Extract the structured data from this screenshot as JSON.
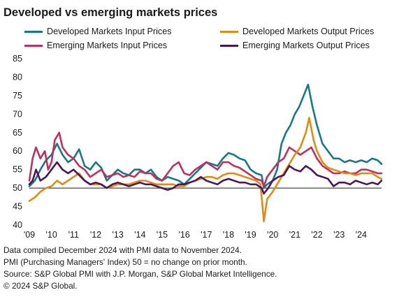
{
  "title": "Developed vs emerging markets prices",
  "colors": {
    "dm_input": "#157a86",
    "dm_output": "#e38a12",
    "em_input": "#c0305c",
    "em_output": "#4b1658",
    "baseline": "#1a1a1a"
  },
  "notes": [
    "Data compiled December 2024 with PMI data to November 2024.",
    "PMI (Purchasing Managers' Index) 50 = no change on prior month.",
    "Source: S&P Global PMI with J.P. Morgan, S&P Global Market Intelligence.",
    "© 2024 S&P Global."
  ],
  "chart_data": {
    "type": "line",
    "title": "Developed vs emerging markets prices",
    "xlabel": "",
    "ylabel": "",
    "xlim": [
      2009,
      2024.92
    ],
    "ylim": [
      40,
      85
    ],
    "yticks": [
      40,
      45,
      50,
      55,
      60,
      65,
      70,
      75,
      80,
      85
    ],
    "xticks": [
      {
        "label": "'09",
        "x": 2009
      },
      {
        "label": "'10",
        "x": 2010
      },
      {
        "label": "'11",
        "x": 2011
      },
      {
        "label": "'12",
        "x": 2012
      },
      {
        "label": "'13",
        "x": 2013
      },
      {
        "label": "'14",
        "x": 2014
      },
      {
        "label": "'15",
        "x": 2015
      },
      {
        "label": "'16",
        "x": 2016
      },
      {
        "label": "'17",
        "x": 2017
      },
      {
        "label": "'18",
        "x": 2018
      },
      {
        "label": "'19",
        "x": 2019
      },
      {
        "label": "'20",
        "x": 2020
      },
      {
        "label": "'21",
        "x": 2021
      },
      {
        "label": "'22",
        "x": 2022
      },
      {
        "label": "'23",
        "x": 2023
      },
      {
        "label": "'24",
        "x": 2024
      }
    ],
    "reference_line": 50,
    "grid": false,
    "legend_position": "top",
    "series": [
      {
        "name": "Developed Markets Input Prices",
        "color": "#157a86",
        "points": [
          [
            2009,
            50.5
          ],
          [
            2009.25,
            52
          ],
          [
            2009.5,
            55
          ],
          [
            2009.75,
            57.5
          ],
          [
            2010,
            59
          ],
          [
            2010.25,
            62
          ],
          [
            2010.5,
            59
          ],
          [
            2010.75,
            57
          ],
          [
            2011,
            58
          ],
          [
            2011.25,
            60.5
          ],
          [
            2011.5,
            56
          ],
          [
            2011.75,
            55
          ],
          [
            2012,
            57
          ],
          [
            2012.25,
            55.5
          ],
          [
            2012.5,
            52
          ],
          [
            2012.75,
            53.5
          ],
          [
            2013,
            55
          ],
          [
            2013.25,
            54
          ],
          [
            2013.5,
            53.5
          ],
          [
            2013.75,
            55
          ],
          [
            2014,
            55
          ],
          [
            2014.25,
            54
          ],
          [
            2014.5,
            55
          ],
          [
            2014.75,
            53
          ],
          [
            2015,
            52
          ],
          [
            2015.25,
            53
          ],
          [
            2015.5,
            52.5
          ],
          [
            2015.75,
            52
          ],
          [
            2016,
            51
          ],
          [
            2016.25,
            52.5
          ],
          [
            2016.5,
            54
          ],
          [
            2016.75,
            55.5
          ],
          [
            2017,
            57
          ],
          [
            2017.25,
            56.5
          ],
          [
            2017.5,
            56
          ],
          [
            2017.75,
            58
          ],
          [
            2018,
            59.5
          ],
          [
            2018.25,
            59
          ],
          [
            2018.5,
            58
          ],
          [
            2018.75,
            57.5
          ],
          [
            2019,
            55
          ],
          [
            2019.25,
            54
          ],
          [
            2019.5,
            53.5
          ],
          [
            2019.6,
            50
          ],
          [
            2019.75,
            51
          ],
          [
            2020,
            52
          ],
          [
            2020.2,
            55
          ],
          [
            2020.4,
            62
          ],
          [
            2020.6,
            65
          ],
          [
            2020.8,
            67
          ],
          [
            2021,
            70
          ],
          [
            2021.2,
            72
          ],
          [
            2021.4,
            75
          ],
          [
            2021.6,
            78
          ],
          [
            2021.8,
            72
          ],
          [
            2022,
            67
          ],
          [
            2022.25,
            62
          ],
          [
            2022.5,
            60
          ],
          [
            2022.75,
            58
          ],
          [
            2023,
            58
          ],
          [
            2023.25,
            57
          ],
          [
            2023.5,
            57.5
          ],
          [
            2023.75,
            57
          ],
          [
            2024,
            57.5
          ],
          [
            2024.25,
            57
          ],
          [
            2024.5,
            58
          ],
          [
            2024.75,
            57.5
          ],
          [
            2024.92,
            56.5
          ]
        ]
      },
      {
        "name": "Developed Markets Output Prices",
        "color": "#e38a12",
        "points": [
          [
            2009,
            46.5
          ],
          [
            2009.25,
            47.5
          ],
          [
            2009.5,
            49
          ],
          [
            2009.75,
            50
          ],
          [
            2010,
            50.5
          ],
          [
            2010.25,
            52
          ],
          [
            2010.5,
            51
          ],
          [
            2010.75,
            52
          ],
          [
            2011,
            53
          ],
          [
            2011.25,
            54
          ],
          [
            2011.5,
            52
          ],
          [
            2011.75,
            51
          ],
          [
            2012,
            51
          ],
          [
            2012.25,
            51
          ],
          [
            2012.5,
            50
          ],
          [
            2012.75,
            50.5
          ],
          [
            2013,
            51
          ],
          [
            2013.25,
            51
          ],
          [
            2013.5,
            51
          ],
          [
            2013.75,
            51.5
          ],
          [
            2014,
            52
          ],
          [
            2014.25,
            52
          ],
          [
            2014.5,
            51.5
          ],
          [
            2014.75,
            51
          ],
          [
            2015,
            51
          ],
          [
            2015.25,
            51
          ],
          [
            2015.5,
            51
          ],
          [
            2015.75,
            50.5
          ],
          [
            2016,
            50.5
          ],
          [
            2016.25,
            51.5
          ],
          [
            2016.5,
            52
          ],
          [
            2016.75,
            52.5
          ],
          [
            2017,
            53
          ],
          [
            2017.25,
            53
          ],
          [
            2017.5,
            52.5
          ],
          [
            2017.75,
            53.5
          ],
          [
            2018,
            54
          ],
          [
            2018.25,
            54
          ],
          [
            2018.5,
            53.5
          ],
          [
            2018.75,
            53
          ],
          [
            2019,
            52.5
          ],
          [
            2019.25,
            52
          ],
          [
            2019.45,
            51
          ],
          [
            2019.6,
            41
          ],
          [
            2019.75,
            47
          ],
          [
            2020,
            49
          ],
          [
            2020.2,
            51
          ],
          [
            2020.4,
            53
          ],
          [
            2020.6,
            55
          ],
          [
            2020.8,
            57
          ],
          [
            2021,
            59
          ],
          [
            2021.25,
            61
          ],
          [
            2021.5,
            65
          ],
          [
            2021.65,
            69
          ],
          [
            2021.85,
            63
          ],
          [
            2022,
            60
          ],
          [
            2022.25,
            57
          ],
          [
            2022.5,
            55.5
          ],
          [
            2022.75,
            55
          ],
          [
            2023,
            54.5
          ],
          [
            2023.25,
            54
          ],
          [
            2023.5,
            54
          ],
          [
            2023.75,
            53.5
          ],
          [
            2024,
            54
          ],
          [
            2024.25,
            54
          ],
          [
            2024.5,
            54
          ],
          [
            2024.75,
            53
          ],
          [
            2024.92,
            52.5
          ]
        ]
      },
      {
        "name": "Emerging Markets Input Prices",
        "color": "#c0305c",
        "points": [
          [
            2009,
            52
          ],
          [
            2009.15,
            58
          ],
          [
            2009.3,
            61
          ],
          [
            2009.5,
            58
          ],
          [
            2009.7,
            60
          ],
          [
            2009.85,
            55
          ],
          [
            2010,
            57
          ],
          [
            2010.15,
            63
          ],
          [
            2010.35,
            65
          ],
          [
            2010.5,
            61
          ],
          [
            2010.75,
            59
          ],
          [
            2011,
            58
          ],
          [
            2011.25,
            56
          ],
          [
            2011.5,
            55
          ],
          [
            2011.75,
            53
          ],
          [
            2012,
            54
          ],
          [
            2012.25,
            55
          ],
          [
            2012.5,
            53
          ],
          [
            2012.75,
            53.5
          ],
          [
            2013,
            54
          ],
          [
            2013.25,
            53
          ],
          [
            2013.5,
            53.5
          ],
          [
            2013.75,
            53
          ],
          [
            2014,
            54.5
          ],
          [
            2014.25,
            54
          ],
          [
            2014.5,
            54
          ],
          [
            2014.75,
            52.5
          ],
          [
            2015,
            52
          ],
          [
            2015.25,
            54
          ],
          [
            2015.5,
            56
          ],
          [
            2015.75,
            57
          ],
          [
            2016,
            54
          ],
          [
            2016.25,
            53.5
          ],
          [
            2016.5,
            55
          ],
          [
            2016.75,
            56
          ],
          [
            2017,
            57
          ],
          [
            2017.25,
            56
          ],
          [
            2017.5,
            55
          ],
          [
            2017.75,
            57
          ],
          [
            2018,
            57
          ],
          [
            2018.25,
            56
          ],
          [
            2018.5,
            55.5
          ],
          [
            2018.75,
            54.5
          ],
          [
            2019,
            53.5
          ],
          [
            2019.25,
            52.5
          ],
          [
            2019.5,
            52
          ],
          [
            2019.6,
            50.5
          ],
          [
            2019.75,
            53
          ],
          [
            2020,
            55
          ],
          [
            2020.25,
            57
          ],
          [
            2020.5,
            58
          ],
          [
            2020.75,
            61
          ],
          [
            2021,
            60
          ],
          [
            2021.25,
            59
          ],
          [
            2021.5,
            60
          ],
          [
            2021.75,
            61
          ],
          [
            2022,
            58
          ],
          [
            2022.25,
            56
          ],
          [
            2022.5,
            55
          ],
          [
            2022.75,
            54
          ],
          [
            2023,
            54
          ],
          [
            2023.25,
            54.5
          ],
          [
            2023.5,
            54
          ],
          [
            2023.75,
            54
          ],
          [
            2024,
            55
          ],
          [
            2024.25,
            55
          ],
          [
            2024.5,
            54.5
          ],
          [
            2024.75,
            54
          ],
          [
            2024.92,
            54
          ]
        ]
      },
      {
        "name": "Emerging Markets Output Prices",
        "color": "#4b1658",
        "points": [
          [
            2009,
            51
          ],
          [
            2009.15,
            52
          ],
          [
            2009.3,
            55
          ],
          [
            2009.5,
            52
          ],
          [
            2009.75,
            53
          ],
          [
            2010,
            55
          ],
          [
            2010.25,
            57
          ],
          [
            2010.5,
            55
          ],
          [
            2010.75,
            54
          ],
          [
            2011,
            55
          ],
          [
            2011.25,
            53.5
          ],
          [
            2011.5,
            52
          ],
          [
            2011.75,
            51
          ],
          [
            2012,
            51.5
          ],
          [
            2012.25,
            51
          ],
          [
            2012.5,
            50
          ],
          [
            2012.75,
            51
          ],
          [
            2013,
            51.5
          ],
          [
            2013.25,
            51
          ],
          [
            2013.5,
            50.5
          ],
          [
            2013.75,
            51
          ],
          [
            2014,
            51.5
          ],
          [
            2014.25,
            51
          ],
          [
            2014.5,
            51
          ],
          [
            2014.75,
            50.5
          ],
          [
            2015,
            50
          ],
          [
            2015.25,
            49.5
          ],
          [
            2015.5,
            50
          ],
          [
            2015.75,
            51
          ],
          [
            2016,
            51
          ],
          [
            2016.25,
            51.5
          ],
          [
            2016.5,
            52
          ],
          [
            2016.75,
            53
          ],
          [
            2017,
            52
          ],
          [
            2017.25,
            51.5
          ],
          [
            2017.5,
            51
          ],
          [
            2017.75,
            52
          ],
          [
            2018,
            52.5
          ],
          [
            2018.25,
            52
          ],
          [
            2018.5,
            51.5
          ],
          [
            2018.75,
            51.5
          ],
          [
            2019,
            51
          ],
          [
            2019.25,
            51
          ],
          [
            2019.5,
            50
          ],
          [
            2019.6,
            48.5
          ],
          [
            2019.8,
            50
          ],
          [
            2020,
            52
          ],
          [
            2020.25,
            53
          ],
          [
            2020.5,
            53.5
          ],
          [
            2020.75,
            56
          ],
          [
            2021,
            55
          ],
          [
            2021.25,
            54.5
          ],
          [
            2021.5,
            56
          ],
          [
            2021.75,
            55
          ],
          [
            2022,
            53.5
          ],
          [
            2022.25,
            53
          ],
          [
            2022.5,
            52.5
          ],
          [
            2022.75,
            50.5
          ],
          [
            2023,
            51.5
          ],
          [
            2023.25,
            51.5
          ],
          [
            2023.5,
            51
          ],
          [
            2023.75,
            52
          ],
          [
            2024,
            51.5
          ],
          [
            2024.25,
            51
          ],
          [
            2024.5,
            51.5
          ],
          [
            2024.75,
            51
          ],
          [
            2024.92,
            52
          ]
        ]
      }
    ]
  }
}
